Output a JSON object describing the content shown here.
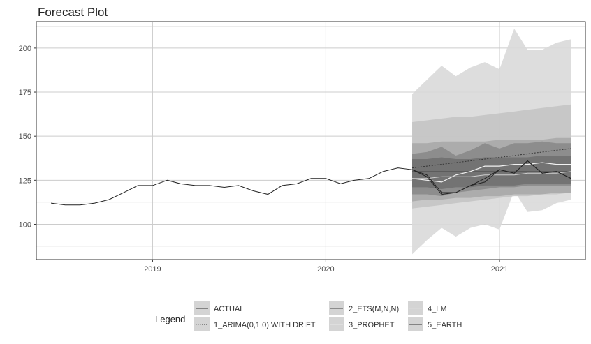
{
  "chart_data": {
    "type": "line",
    "title": "Forecast Plot",
    "xlabel": "",
    "ylabel": "",
    "x_tick_labels": [
      "2019",
      "2020",
      "2021"
    ],
    "x_ticks": [
      "2019-01-01",
      "2020-01-01",
      "2021-01-01"
    ],
    "x_range": [
      "2018-05-01",
      "2021-07-01"
    ],
    "y_ticks": [
      100,
      125,
      150,
      175,
      200
    ],
    "ylim": [
      80,
      215
    ],
    "grid": true,
    "legend_position": "bottom",
    "legend_title": "Legend",
    "legend": [
      {
        "label": "ACTUAL",
        "color": "#333333",
        "dash": "solid"
      },
      {
        "label": "1_ARIMA(0,1,0) WITH DRIFT",
        "color": "#333333",
        "dash": "dotted"
      },
      {
        "label": "2_ETS(M,N,N)",
        "color": "#444444",
        "dash": "solid"
      },
      {
        "label": "3_PROPHET",
        "color": "#e8e8e8",
        "dash": "solid"
      },
      {
        "label": "4_LM",
        "color": "#dcdcdc",
        "dash": "solid"
      },
      {
        "label": "5_EARTH",
        "color": "#333333",
        "dash": "solid"
      }
    ],
    "actual": {
      "name": "ACTUAL",
      "x": [
        "2018-06-01",
        "2018-07-01",
        "2018-08-01",
        "2018-09-01",
        "2018-10-01",
        "2018-11-01",
        "2018-12-01",
        "2019-01-01",
        "2019-02-01",
        "2019-03-01",
        "2019-04-01",
        "2019-05-01",
        "2019-06-01",
        "2019-07-01",
        "2019-08-01",
        "2019-09-01",
        "2019-10-01",
        "2019-11-01",
        "2019-12-01",
        "2020-01-01",
        "2020-02-01",
        "2020-03-01",
        "2020-04-01",
        "2020-05-01",
        "2020-06-01",
        "2020-07-01",
        "2020-08-01",
        "2020-09-01",
        "2020-10-01",
        "2020-11-01",
        "2020-12-01",
        "2021-01-01",
        "2021-02-01",
        "2021-03-01",
        "2021-04-01",
        "2021-05-01",
        "2021-06-01"
      ],
      "y": [
        112,
        111,
        111,
        112,
        114,
        118,
        122,
        122,
        125,
        123,
        122,
        122,
        121,
        122,
        119,
        117,
        122,
        123,
        126,
        126,
        123,
        125,
        126,
        130,
        132,
        131,
        128,
        118,
        118,
        122,
        124,
        131,
        129,
        136,
        129,
        130,
        126
      ]
    },
    "forecast_x": [
      "2020-07-01",
      "2020-08-01",
      "2020-09-01",
      "2020-10-01",
      "2020-11-01",
      "2020-12-01",
      "2021-01-01",
      "2021-02-01",
      "2021-03-01",
      "2021-04-01",
      "2021-05-01",
      "2021-06-01"
    ],
    "series": [
      {
        "name": "1_ARIMA(0,1,0) WITH DRIFT",
        "values": [
          132,
          133,
          134,
          135,
          136,
          137,
          138,
          139,
          140,
          141,
          142,
          143
        ]
      },
      {
        "name": "2_ETS(M,N,N)",
        "values": [
          130,
          130,
          130,
          130,
          130,
          130,
          130,
          130,
          130,
          130,
          130,
          130
        ]
      },
      {
        "name": "3_PROPHET",
        "values": [
          126,
          125,
          124,
          128,
          130,
          133,
          133,
          134,
          134,
          135,
          134,
          134
        ]
      },
      {
        "name": "4_LM",
        "values": [
          126,
          126,
          127,
          127,
          127,
          128,
          128,
          128,
          129,
          129,
          129,
          130
        ]
      },
      {
        "name": "5_EARTH",
        "values": [
          131,
          127,
          117,
          118,
          122,
          126,
          131,
          129,
          136,
          129,
          130,
          126
        ]
      }
    ],
    "bands": [
      {
        "name": "4_LM",
        "color": "#d9d9d9",
        "lower": [
          83,
          91,
          98,
          93,
          98,
          100,
          97,
          119,
          107,
          108,
          112,
          114
        ],
        "upper": [
          174,
          182,
          190,
          184,
          189,
          192,
          188,
          211,
          199,
          199,
          203,
          205
        ]
      },
      {
        "name": "1_ARIMA(0,1,0) WITH DRIFT",
        "color": "#c4c4c4",
        "lower": [
          109,
          110,
          111,
          112,
          113,
          114,
          115,
          116,
          116,
          117,
          117,
          118
        ],
        "upper": [
          158,
          159,
          160,
          161,
          161,
          162,
          163,
          164,
          165,
          166,
          167,
          168
        ]
      },
      {
        "name": "2_ETS(M,N,N)",
        "color": "#a8a8a8",
        "lower": [
          113,
          114,
          114,
          115,
          115,
          116,
          116,
          117,
          117,
          117,
          118,
          118
        ],
        "upper": [
          146,
          146,
          147,
          147,
          147,
          147,
          148,
          148,
          148,
          148,
          149,
          149
        ]
      },
      {
        "name": "3_PROPHET",
        "color": "#8a8a8a",
        "lower": [
          117,
          117,
          116,
          118,
          119,
          120,
          121,
          121,
          122,
          122,
          122,
          122
        ],
        "upper": [
          140,
          141,
          144,
          139,
          142,
          146,
          143,
          146,
          146,
          147,
          146,
          146
        ]
      },
      {
        "name": "5_EARTH",
        "color": "#707070",
        "lower": [
          121,
          121,
          120,
          121,
          121,
          122,
          122,
          122,
          123,
          123,
          123,
          123
        ],
        "upper": [
          137,
          137,
          138,
          137,
          137,
          138,
          138,
          138,
          138,
          139,
          139,
          139
        ]
      }
    ]
  }
}
